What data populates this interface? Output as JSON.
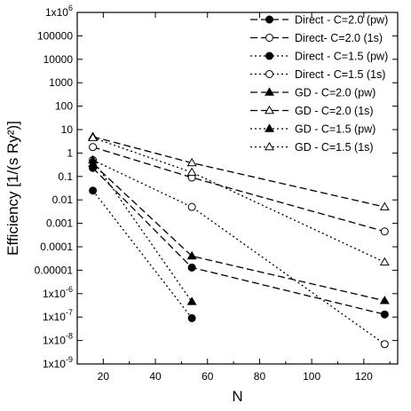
{
  "chart_data": {
    "type": "line",
    "xlabel": "N",
    "ylabel": "Efficiency [1/(s Ry²)]",
    "xscale": "linear",
    "yscale": "log",
    "xlim": [
      10,
      133
    ],
    "ylim": [
      1e-09,
      1000000.0
    ],
    "grid": false,
    "legend_position": "top-right",
    "x_ticks": [
      {
        "value": 20,
        "label": "20"
      },
      {
        "value": 40,
        "label": "40"
      },
      {
        "value": 60,
        "label": "60"
      },
      {
        "value": 80,
        "label": "80"
      },
      {
        "value": 100,
        "label": "100"
      },
      {
        "value": 120,
        "label": "120"
      }
    ],
    "y_ticks": [
      {
        "value": 1e-09,
        "base": "1x10",
        "exp": "-9"
      },
      {
        "value": 1e-08,
        "base": "1x10",
        "exp": "-8"
      },
      {
        "value": 1e-07,
        "base": "1x10",
        "exp": "-7"
      },
      {
        "value": 1e-06,
        "base": "1x10",
        "exp": "-6"
      },
      {
        "value": 1e-05,
        "base": "0.00001",
        "exp": ""
      },
      {
        "value": 0.0001,
        "base": "0.0001",
        "exp": ""
      },
      {
        "value": 0.001,
        "base": "0.001",
        "exp": ""
      },
      {
        "value": 0.01,
        "base": "0.01",
        "exp": ""
      },
      {
        "value": 0.1,
        "base": "0.1",
        "exp": ""
      },
      {
        "value": 1,
        "base": "1",
        "exp": ""
      },
      {
        "value": 10,
        "base": "10",
        "exp": ""
      },
      {
        "value": 100,
        "base": "100",
        "exp": ""
      },
      {
        "value": 1000,
        "base": "1000",
        "exp": ""
      },
      {
        "value": 10000,
        "base": "10000",
        "exp": ""
      },
      {
        "value": 100000,
        "base": "100000",
        "exp": ""
      },
      {
        "value": 1000000,
        "base": "1x10",
        "exp": "6"
      }
    ],
    "series": [
      {
        "name": "Direct - C=2.0 (pw)",
        "marker": "circle",
        "filled": true,
        "dash": "dashed",
        "x": [
          16,
          54,
          128
        ],
        "y": [
          0.23,
          1.3e-05,
          1.3e-07
        ]
      },
      {
        "name": "Direct- C=2.0 (1s)",
        "marker": "circle",
        "filled": false,
        "dash": "dashed",
        "x": [
          16,
          54,
          128
        ],
        "y": [
          1.8,
          0.09,
          0.00045
        ]
      },
      {
        "name": "Direct - C=1.5 (pw)",
        "marker": "circle",
        "filled": true,
        "dash": "dotted",
        "x": [
          16,
          54
        ],
        "y": [
          0.025,
          9e-08
        ]
      },
      {
        "name": "Direct - C=1.5 (1s)",
        "marker": "circle",
        "filled": false,
        "dash": "dotted",
        "x": [
          16,
          54,
          128
        ],
        "y": [
          0.5,
          0.005,
          7e-09
        ]
      },
      {
        "name": "GD - C=2.0 (pw)",
        "marker": "triangle",
        "filled": true,
        "dash": "dashed",
        "x": [
          16,
          54,
          128
        ],
        "y": [
          0.35,
          4e-05,
          5e-07
        ]
      },
      {
        "name": "GD - C=2.0 (1s)",
        "marker": "triangle",
        "filled": false,
        "dash": "dashed",
        "x": [
          16,
          54,
          128
        ],
        "y": [
          5.0,
          0.38,
          0.005
        ]
      },
      {
        "name": "GD - C=1.5 (pw)",
        "marker": "triangle",
        "filled": true,
        "dash": "dotted",
        "x": [
          16,
          54
        ],
        "y": [
          0.5,
          4.5e-07
        ]
      },
      {
        "name": "GD - C=1.5 (1s)",
        "marker": "triangle",
        "filled": false,
        "dash": "dotted",
        "x": [
          16,
          54,
          128
        ],
        "y": [
          4.5,
          0.15,
          2.2e-05
        ]
      }
    ]
  }
}
